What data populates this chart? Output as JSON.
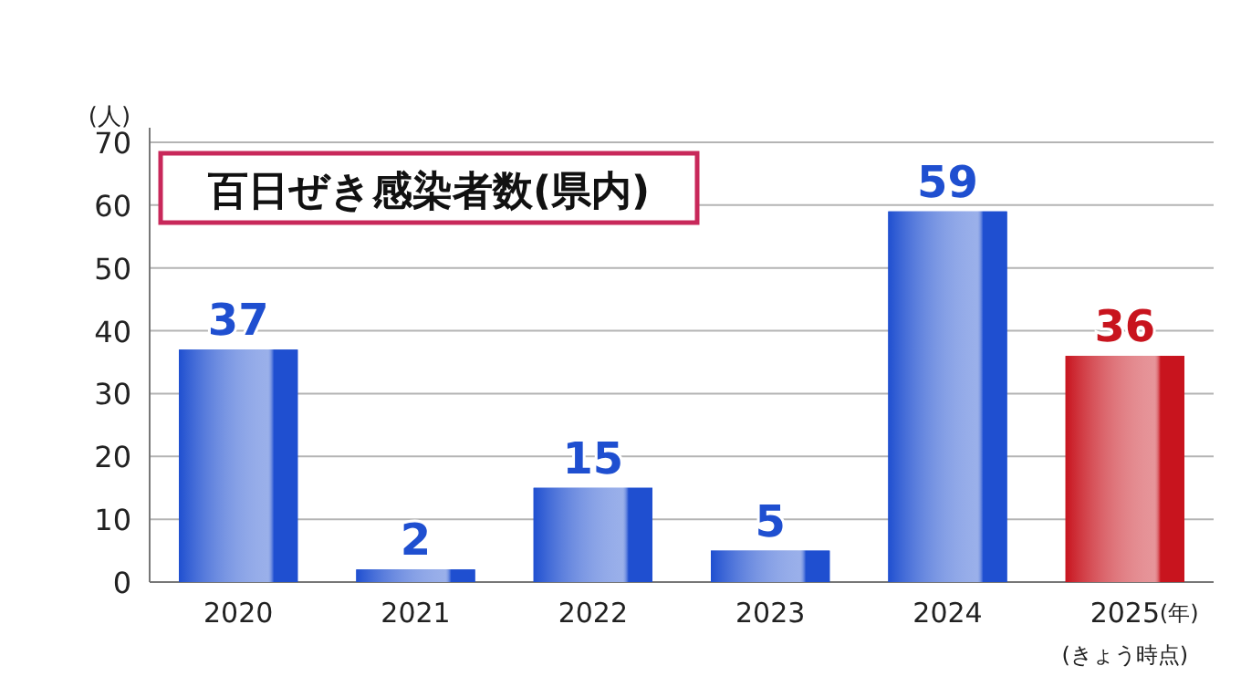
{
  "chart_data": {
    "type": "bar",
    "title": "百日ぜき感染者数(県内)",
    "ylabel": "(人)",
    "xlabel": "(年)",
    "annotations": [
      "(きょう時点)"
    ],
    "categories": [
      "2020",
      "2021",
      "2022",
      "2023",
      "2024",
      "2025"
    ],
    "values": [
      37,
      2,
      15,
      5,
      59,
      36
    ],
    "colors": [
      "#1f4fd0",
      "#1f4fd0",
      "#1f4fd0",
      "#1f4fd0",
      "#1f4fd0",
      "#c8141e"
    ],
    "ylim": [
      0,
      70
    ],
    "yticks": [
      0,
      10,
      20,
      30,
      40,
      50,
      60,
      70
    ],
    "grid": "y",
    "data_labels": true
  }
}
